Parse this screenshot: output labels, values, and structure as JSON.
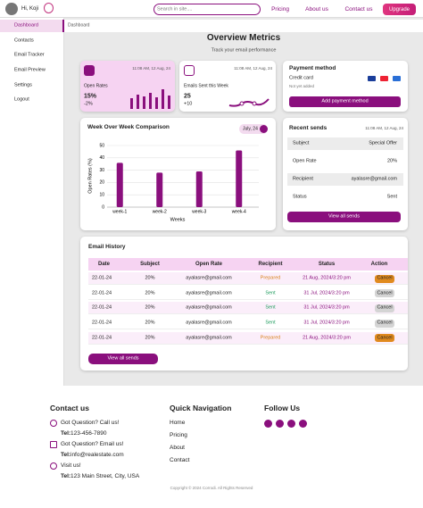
{
  "nav": {
    "greeting": "Hi, Koji",
    "search_placeholder": "Search in site....",
    "links": [
      "Pricing",
      "About us",
      "Contact us"
    ],
    "upgrade": "Upgrade"
  },
  "sidebar": {
    "items": [
      "Dashboard",
      "Contacts",
      "Email Tracker",
      "Email Preview",
      "Settings",
      "Logout"
    ]
  },
  "breadcrumb": "Dashboard",
  "header": {
    "title": "Overview Metrics",
    "subtitle": "Track your email performance"
  },
  "open_rates_card": {
    "time": "11:08 AM, 12 Aug, 24",
    "label": "Open Rates",
    "value": "15%",
    "change": "-2%"
  },
  "emails_sent_card": {
    "time": "11:08 AM, 12 Aug, 24",
    "label": "Emails Sent this Week",
    "value": "25",
    "change": "+10"
  },
  "payment_card": {
    "title": "Payment method",
    "method": "Credit card",
    "status": "Not yet added",
    "button": "Add payment method"
  },
  "chart_data": {
    "type": "bar",
    "title": "Week Over Week Comparison",
    "period": "July, 24",
    "categories": [
      "week-1",
      "week-2",
      "week-3",
      "week-4"
    ],
    "values": [
      36,
      28,
      29,
      46
    ],
    "color": "#8a0f7d",
    "xlabel": "Weeks",
    "ylabel": "Open Rates (%)",
    "ylim": [
      0,
      50
    ],
    "yticks": [
      0,
      10,
      20,
      30,
      40,
      50
    ],
    "grid": true
  },
  "recent_sends": {
    "title": "Recent sends",
    "time": "11:08 AM, 12 Aug, 24",
    "rows": [
      [
        "Subject",
        "Special Offer"
      ],
      [
        "Open Rate",
        "20%"
      ],
      [
        "Recipient",
        "ayalasre@gmail.com"
      ],
      [
        "Status",
        "Sent"
      ]
    ],
    "button": "View all sends"
  },
  "email_history": {
    "title": "Email History",
    "columns": [
      "Date",
      "Subject",
      "Open Rate",
      "Recipient",
      "Status",
      "Action"
    ],
    "rows": [
      {
        "cells": [
          "22-01-24",
          "20%",
          "ayalasre@gmail.com",
          "Prepared",
          "21 Aug, 2024/3:20 pm",
          "Cancel"
        ],
        "status_color": "#d9821c",
        "action_color": "#e08a1e"
      },
      {
        "cells": [
          "22-01-24",
          "20%",
          "ayalasre@gmail.com",
          "Sent",
          "31 Jul, 2024/3:20 pm",
          "Cancel"
        ],
        "status_color": "#1a9a5a",
        "action_color": "#d4d4d4"
      },
      {
        "cells": [
          "22-01-24",
          "20%",
          "ayalasre@gmail.com",
          "Sent",
          "31 Jul, 2024/3:20 pm",
          "Cancel"
        ],
        "status_color": "#1a9a5a",
        "action_color": "#d4d4d4"
      },
      {
        "cells": [
          "22-01-24",
          "20%",
          "ayalasre@gmail.com",
          "Sent",
          "31 Jul, 2024/3:20 pm",
          "Cancel"
        ],
        "status_color": "#1a9a5a",
        "action_color": "#d4d4d4"
      },
      {
        "cells": [
          "22-01-24",
          "20%",
          "ayalasre@gmail.com",
          "Prepared",
          "21 Aug, 2024/3:20 pm",
          "Cancel"
        ],
        "status_color": "#d9821c",
        "action_color": "#e08a1e"
      }
    ],
    "button": "View all sends"
  },
  "footer": {
    "contact": {
      "title": "Contact us",
      "items": [
        {
          "heading": "Got Question? Call us!",
          "label": "Tel:",
          "value": "123-456-7890"
        },
        {
          "heading": "Got Question? Email us!",
          "label": "Tel:",
          "value": "info@realestate.com"
        },
        {
          "heading": "Visit us!",
          "label": "Tel:",
          "value": "123 Main Street, City, USA"
        }
      ]
    },
    "navigation": {
      "title": "Quick Navigation",
      "links": [
        "Home",
        "Pricing",
        "About",
        "Contact"
      ]
    },
    "follow": {
      "title": "Follow Us"
    },
    "copyright": "Copyright © 2024 Corrodi. All Rights Reserved"
  }
}
